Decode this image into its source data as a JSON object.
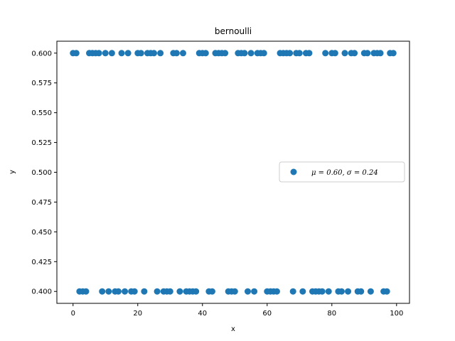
{
  "chart_data": {
    "type": "scatter",
    "title": "bernoulli",
    "xlabel": "x",
    "ylabel": "y",
    "xlim": [
      -5,
      104
    ],
    "ylim": [
      0.39,
      0.61
    ],
    "x_ticks": [
      0,
      20,
      40,
      60,
      80,
      100
    ],
    "x_tick_labels": [
      "0",
      "20",
      "40",
      "60",
      "80",
      "100"
    ],
    "y_ticks": [
      0.4,
      0.425,
      0.45,
      0.475,
      0.5,
      0.525,
      0.55,
      0.575,
      0.6
    ],
    "y_tick_labels": [
      "0.400",
      "0.425",
      "0.450",
      "0.475",
      "0.500",
      "0.525",
      "0.550",
      "0.575",
      "0.600"
    ],
    "grid": false,
    "legend_position": "center-right",
    "marker_color": "#1f77b4",
    "series": [
      {
        "name": "μ = 0.60,  σ = 0.24",
        "points": [
          {
            "x": 0,
            "y": 0.6
          },
          {
            "x": 1,
            "y": 0.6
          },
          {
            "x": 2,
            "y": 0.4
          },
          {
            "x": 3,
            "y": 0.4
          },
          {
            "x": 4,
            "y": 0.4
          },
          {
            "x": 5,
            "y": 0.6
          },
          {
            "x": 6,
            "y": 0.6
          },
          {
            "x": 7,
            "y": 0.6
          },
          {
            "x": 8,
            "y": 0.6
          },
          {
            "x": 9,
            "y": 0.4
          },
          {
            "x": 10,
            "y": 0.6
          },
          {
            "x": 11,
            "y": 0.4
          },
          {
            "x": 12,
            "y": 0.6
          },
          {
            "x": 13,
            "y": 0.4
          },
          {
            "x": 14,
            "y": 0.4
          },
          {
            "x": 15,
            "y": 0.6
          },
          {
            "x": 16,
            "y": 0.4
          },
          {
            "x": 17,
            "y": 0.6
          },
          {
            "x": 18,
            "y": 0.4
          },
          {
            "x": 19,
            "y": 0.4
          },
          {
            "x": 20,
            "y": 0.6
          },
          {
            "x": 21,
            "y": 0.6
          },
          {
            "x": 22,
            "y": 0.4
          },
          {
            "x": 23,
            "y": 0.6
          },
          {
            "x": 24,
            "y": 0.6
          },
          {
            "x": 25,
            "y": 0.6
          },
          {
            "x": 26,
            "y": 0.4
          },
          {
            "x": 27,
            "y": 0.6
          },
          {
            "x": 28,
            "y": 0.4
          },
          {
            "x": 29,
            "y": 0.4
          },
          {
            "x": 30,
            "y": 0.4
          },
          {
            "x": 31,
            "y": 0.6
          },
          {
            "x": 32,
            "y": 0.6
          },
          {
            "x": 33,
            "y": 0.4
          },
          {
            "x": 34,
            "y": 0.6
          },
          {
            "x": 35,
            "y": 0.4
          },
          {
            "x": 36,
            "y": 0.4
          },
          {
            "x": 37,
            "y": 0.4
          },
          {
            "x": 38,
            "y": 0.4
          },
          {
            "x": 39,
            "y": 0.6
          },
          {
            "x": 40,
            "y": 0.6
          },
          {
            "x": 41,
            "y": 0.6
          },
          {
            "x": 42,
            "y": 0.4
          },
          {
            "x": 43,
            "y": 0.4
          },
          {
            "x": 44,
            "y": 0.6
          },
          {
            "x": 45,
            "y": 0.6
          },
          {
            "x": 46,
            "y": 0.6
          },
          {
            "x": 47,
            "y": 0.6
          },
          {
            "x": 48,
            "y": 0.4
          },
          {
            "x": 49,
            "y": 0.4
          },
          {
            "x": 50,
            "y": 0.4
          },
          {
            "x": 51,
            "y": 0.6
          },
          {
            "x": 52,
            "y": 0.6
          },
          {
            "x": 53,
            "y": 0.6
          },
          {
            "x": 54,
            "y": 0.4
          },
          {
            "x": 55,
            "y": 0.6
          },
          {
            "x": 56,
            "y": 0.4
          },
          {
            "x": 57,
            "y": 0.6
          },
          {
            "x": 58,
            "y": 0.6
          },
          {
            "x": 59,
            "y": 0.6
          },
          {
            "x": 60,
            "y": 0.4
          },
          {
            "x": 61,
            "y": 0.4
          },
          {
            "x": 62,
            "y": 0.4
          },
          {
            "x": 63,
            "y": 0.4
          },
          {
            "x": 64,
            "y": 0.6
          },
          {
            "x": 65,
            "y": 0.6
          },
          {
            "x": 66,
            "y": 0.6
          },
          {
            "x": 67,
            "y": 0.6
          },
          {
            "x": 68,
            "y": 0.4
          },
          {
            "x": 69,
            "y": 0.6
          },
          {
            "x": 70,
            "y": 0.6
          },
          {
            "x": 71,
            "y": 0.4
          },
          {
            "x": 72,
            "y": 0.6
          },
          {
            "x": 73,
            "y": 0.6
          },
          {
            "x": 74,
            "y": 0.4
          },
          {
            "x": 75,
            "y": 0.4
          },
          {
            "x": 76,
            "y": 0.4
          },
          {
            "x": 77,
            "y": 0.4
          },
          {
            "x": 78,
            "y": 0.6
          },
          {
            "x": 79,
            "y": 0.4
          },
          {
            "x": 80,
            "y": 0.6
          },
          {
            "x": 81,
            "y": 0.6
          },
          {
            "x": 82,
            "y": 0.4
          },
          {
            "x": 83,
            "y": 0.4
          },
          {
            "x": 84,
            "y": 0.6
          },
          {
            "x": 85,
            "y": 0.4
          },
          {
            "x": 86,
            "y": 0.6
          },
          {
            "x": 87,
            "y": 0.6
          },
          {
            "x": 88,
            "y": 0.4
          },
          {
            "x": 89,
            "y": 0.4
          },
          {
            "x": 90,
            "y": 0.6
          },
          {
            "x": 91,
            "y": 0.6
          },
          {
            "x": 92,
            "y": 0.4
          },
          {
            "x": 93,
            "y": 0.6
          },
          {
            "x": 94,
            "y": 0.6
          },
          {
            "x": 95,
            "y": 0.6
          },
          {
            "x": 96,
            "y": 0.4
          },
          {
            "x": 97,
            "y": 0.4
          },
          {
            "x": 98,
            "y": 0.6
          },
          {
            "x": 99,
            "y": 0.6
          }
        ]
      }
    ]
  }
}
